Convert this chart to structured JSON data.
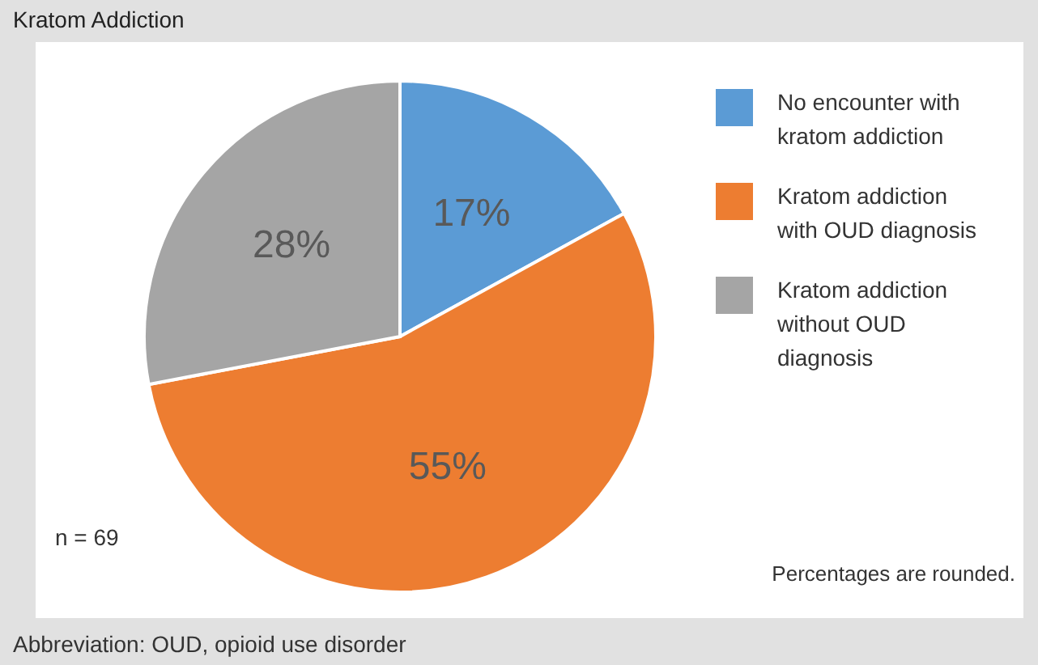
{
  "chart_data": {
    "type": "pie",
    "title": "Kratom Addiction",
    "categories": [
      "No encounter with kratom addiction",
      "Kratom addiction with OUD diagnosis",
      "Kratom addiction without OUD diagnosis"
    ],
    "values": [
      17,
      55,
      28
    ],
    "colors": [
      "#5b9bd5",
      "#ed7d31",
      "#a5a5a5"
    ],
    "value_labels": [
      "17%",
      "55%",
      "28%"
    ],
    "legend": "right",
    "annotations": [
      "n = 69",
      "Percentages are rounded.",
      "Abbreviation: OUD, opioid use disorder"
    ]
  }
}
